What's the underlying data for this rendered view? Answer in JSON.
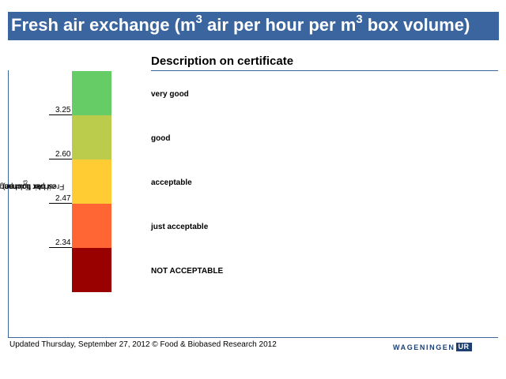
{
  "title": {
    "prefix": "Fresh air exchange (m",
    "sup1": "3",
    "middle": " air per hour per m",
    "sup2": "3",
    "suffix": " box volume)"
  },
  "description_heading": "Description on certificate",
  "y_axis_label": {
    "prefix": "Fresh Air Exchange (m",
    "sup1": "3",
    "middle": " air per hour per m",
    "sup2": "3",
    "suffix": " box volume)"
  },
  "footer": {
    "text": "Updated Thursday, September 27, 2012 © Food & Biobased Research 2012",
    "logo_word": "WAGENINGEN",
    "logo_badge": "UR"
  },
  "colors": {
    "title_bar": "#3b659e",
    "logo": "#1d3f72"
  },
  "chart_data": {
    "type": "bar",
    "orientation": "vertical-stacked-bands",
    "categories": [
      "very good",
      "good",
      "acceptable",
      "just acceptable",
      "NOT ACCEPTABLE"
    ],
    "colors": [
      "#66cc66",
      "#bbcc4d",
      "#ffcc33",
      "#ff6633",
      "#990000"
    ],
    "thresholds": [
      {
        "value": 3.25,
        "label": "3.25"
      },
      {
        "value": 2.6,
        "label": "2.60"
      },
      {
        "value": 2.47,
        "label": "2.47"
      },
      {
        "value": 2.34,
        "label": "2.34"
      }
    ],
    "ylabel": "Fresh Air Exchange (m3 air per hour per m3 box volume)",
    "grid": false,
    "legend": "none"
  }
}
